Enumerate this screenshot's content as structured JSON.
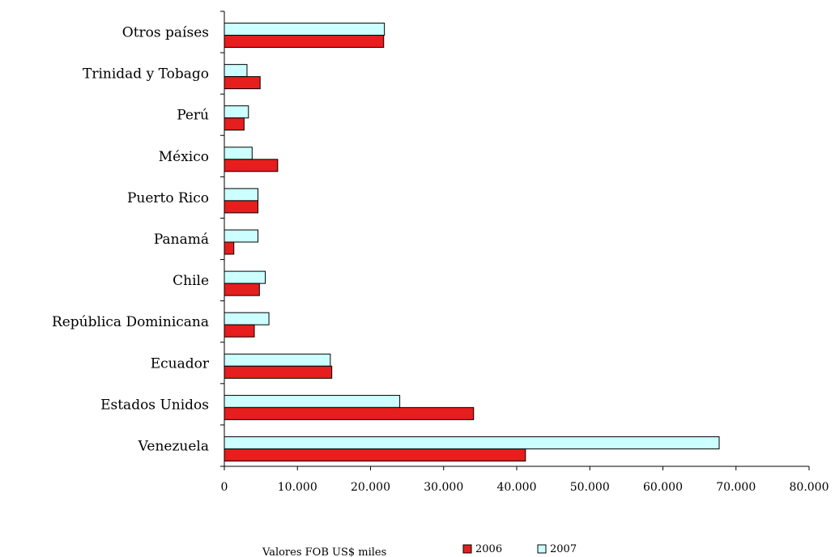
{
  "chart_data": {
    "type": "bar",
    "orientation": "horizontal",
    "categories": [
      "Otros países",
      "Trinidad y Tobago",
      "Perú",
      "México",
      "Puerto Rico",
      "Panamá",
      "Chile",
      "República Dominicana",
      "Ecuador",
      "Estados Unidos",
      "Venezuela"
    ],
    "series": [
      {
        "name": "2006",
        "color": "#e61e1e",
        "values": [
          21800,
          4900,
          2700,
          7300,
          4600,
          1300,
          4800,
          4100,
          14700,
          34100,
          41200
        ]
      },
      {
        "name": "2007",
        "color": "#ccffff",
        "values": [
          21900,
          3100,
          3300,
          3800,
          4600,
          4600,
          5600,
          6100,
          14500,
          24000,
          67700
        ]
      }
    ],
    "xlim": [
      0,
      80000
    ],
    "xticks": [
      "0",
      "10.000",
      "20.000",
      "30.000",
      "40.000",
      "50.000",
      "60.000",
      "70.000",
      "80.000"
    ],
    "xlabel": "Valores FOB US$ miles",
    "title": "",
    "grid": false,
    "legend_position": "bottom"
  }
}
